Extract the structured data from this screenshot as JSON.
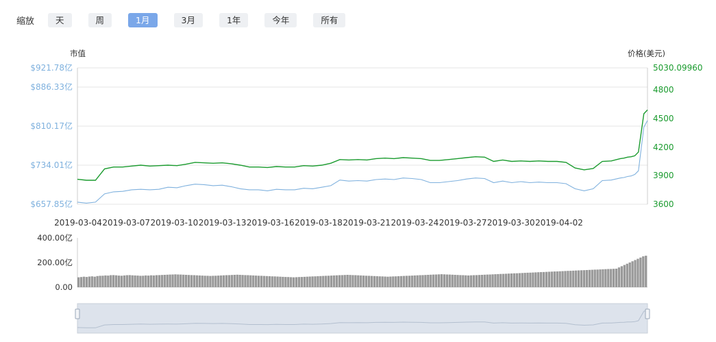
{
  "zoom": {
    "label": "缩放",
    "buttons": [
      "天",
      "周",
      "1月",
      "3月",
      "1年",
      "今年",
      "所有"
    ],
    "active_index": 2
  },
  "chart_data": [
    {
      "type": "line",
      "left_axis_title": "市值",
      "right_axis_title": "价格(美元)",
      "left_ticks": [
        "$921.78亿",
        "$886.33亿",
        "$810.17亿",
        "$734.01亿",
        "$657.85亿"
      ],
      "left_tick_values": [
        921.78,
        886.33,
        810.17,
        734.01,
        657.85
      ],
      "right_ticks": [
        "5030.09960",
        "4800",
        "4500",
        "4200",
        "3900",
        "3600"
      ],
      "right_tick_values": [
        5030.0996,
        4800,
        4500,
        4200,
        3900,
        3600
      ],
      "x_ticks": [
        "2019-03-04",
        "2019-03-07",
        "2019-03-10",
        "2019-03-13",
        "2019-03-16",
        "2019-03-18",
        "2019-03-21",
        "2019-03-24",
        "2019-03-27",
        "2019-03-30",
        "2019-04-02"
      ],
      "grid": true,
      "series": [
        {
          "axis": "right",
          "color": "#1a9b2e",
          "x": [
            0,
            0.5,
            1,
            1.5,
            2,
            2.5,
            3,
            3.5,
            4,
            4.5,
            5,
            5.5,
            6,
            6.5,
            7,
            7.5,
            8,
            8.5,
            9,
            9.5,
            10,
            10.5,
            11,
            11.5,
            12,
            12.5,
            13,
            13.5,
            14,
            14.5,
            15,
            15.5,
            16,
            16.5,
            17,
            17.5,
            18,
            18.5,
            19,
            19.5,
            20,
            20.5,
            21,
            21.5,
            22,
            22.5,
            23,
            23.5,
            24,
            24.5,
            25,
            25.5,
            26,
            26.5,
            27,
            27.5,
            28,
            28.5,
            29,
            29.5,
            30,
            30.2,
            30.4,
            30.6,
            30.8,
            31,
            31.3,
            31.5
          ],
          "values": [
            3860,
            3850,
            3850,
            3970,
            3990,
            3990,
            4000,
            4010,
            4000,
            4005,
            4010,
            4005,
            4020,
            4040,
            4035,
            4030,
            4035,
            4025,
            4010,
            3990,
            3990,
            3985,
            3995,
            3990,
            3990,
            4005,
            4000,
            4010,
            4030,
            4070,
            4065,
            4070,
            4065,
            4080,
            4085,
            4080,
            4090,
            4085,
            4080,
            4060,
            4060,
            4070,
            4080,
            4090,
            4100,
            4095,
            4050,
            4065,
            4050,
            4055,
            4050,
            4055,
            4050,
            4050,
            4040,
            3980,
            3960,
            3975,
            4050,
            4055,
            4080,
            4085,
            4095,
            4100,
            4110,
            4150,
            4550,
            4590
          ]
        },
        {
          "axis": "left",
          "color": "#7fb1de",
          "x": [
            0,
            0.5,
            1,
            1.5,
            2,
            2.5,
            3,
            3.5,
            4,
            4.5,
            5,
            5.5,
            6,
            6.5,
            7,
            7.5,
            8,
            8.5,
            9,
            9.5,
            10,
            10.5,
            11,
            11.5,
            12,
            12.5,
            13,
            13.5,
            14,
            14.5,
            15,
            15.5,
            16,
            16.5,
            17,
            17.5,
            18,
            18.5,
            19,
            19.5,
            20,
            20.5,
            21,
            21.5,
            22,
            22.5,
            23,
            23.5,
            24,
            24.5,
            25,
            25.5,
            26,
            26.5,
            27,
            27.5,
            28,
            28.5,
            29,
            29.5,
            30,
            30.2,
            30.4,
            30.6,
            30.8,
            31,
            31.3,
            31.5
          ],
          "values": [
            662,
            660,
            662,
            678,
            682,
            683,
            686,
            687,
            686,
            687,
            691,
            690,
            694,
            697,
            696,
            694,
            695,
            692,
            688,
            686,
            686,
            684,
            687,
            686,
            686,
            689,
            688,
            691,
            694,
            705,
            703,
            704,
            703,
            706,
            707,
            706,
            709,
            708,
            706,
            700,
            700,
            702,
            704,
            707,
            709,
            708,
            700,
            703,
            700,
            702,
            700,
            701,
            700,
            700,
            698,
            688,
            684,
            688,
            704,
            705,
            709,
            710,
            712,
            713,
            716,
            723,
            808,
            821
          ]
        }
      ]
    },
    {
      "type": "bar",
      "ylabel": "",
      "ticks": [
        "400.00亿",
        "200.00亿",
        "0.00"
      ],
      "tick_values": [
        400,
        200,
        0
      ],
      "color": "#999999",
      "values": [
        80,
        82,
        85,
        83,
        86,
        88,
        85,
        90,
        92,
        93,
        95,
        94,
        97,
        98,
        96,
        94,
        93,
        95,
        97,
        98,
        96,
        95,
        94,
        92,
        93,
        95,
        94,
        96,
        95,
        97,
        98,
        99,
        100,
        101,
        102,
        103,
        104,
        103,
        102,
        101,
        100,
        99,
        98,
        97,
        96,
        95,
        94,
        93,
        92,
        91,
        92,
        93,
        94,
        95,
        96,
        97,
        98,
        99,
        100,
        101,
        100,
        99,
        98,
        97,
        96,
        95,
        94,
        93,
        92,
        91,
        90,
        89,
        88,
        87,
        86,
        85,
        84,
        83,
        82,
        81,
        80,
        81,
        82,
        83,
        84,
        85,
        86,
        87,
        88,
        89,
        90,
        91,
        92,
        93,
        94,
        95,
        96,
        97,
        98,
        99,
        100,
        99,
        98,
        97,
        96,
        95,
        94,
        93,
        92,
        91,
        90,
        89,
        88,
        87,
        86,
        85,
        86,
        87,
        88,
        89,
        90,
        91,
        92,
        93,
        94,
        95,
        96,
        97,
        98,
        99,
        100,
        101,
        102,
        103,
        104,
        105,
        104,
        103,
        102,
        101,
        100,
        99,
        98,
        97,
        96,
        95,
        96,
        97,
        98,
        99,
        100,
        101,
        102,
        103,
        104,
        105,
        106,
        107,
        108,
        109,
        110,
        111,
        112,
        113,
        114,
        115,
        116,
        117,
        118,
        119,
        120,
        121,
        122,
        123,
        124,
        125,
        126,
        127,
        128,
        129,
        130,
        131,
        132,
        133,
        134,
        135,
        136,
        137,
        138,
        139,
        140,
        141,
        142,
        143,
        144,
        145,
        146,
        147,
        148,
        149,
        150,
        160,
        170,
        180,
        190,
        200,
        210,
        220,
        230,
        240,
        250,
        255
      ]
    }
  ]
}
